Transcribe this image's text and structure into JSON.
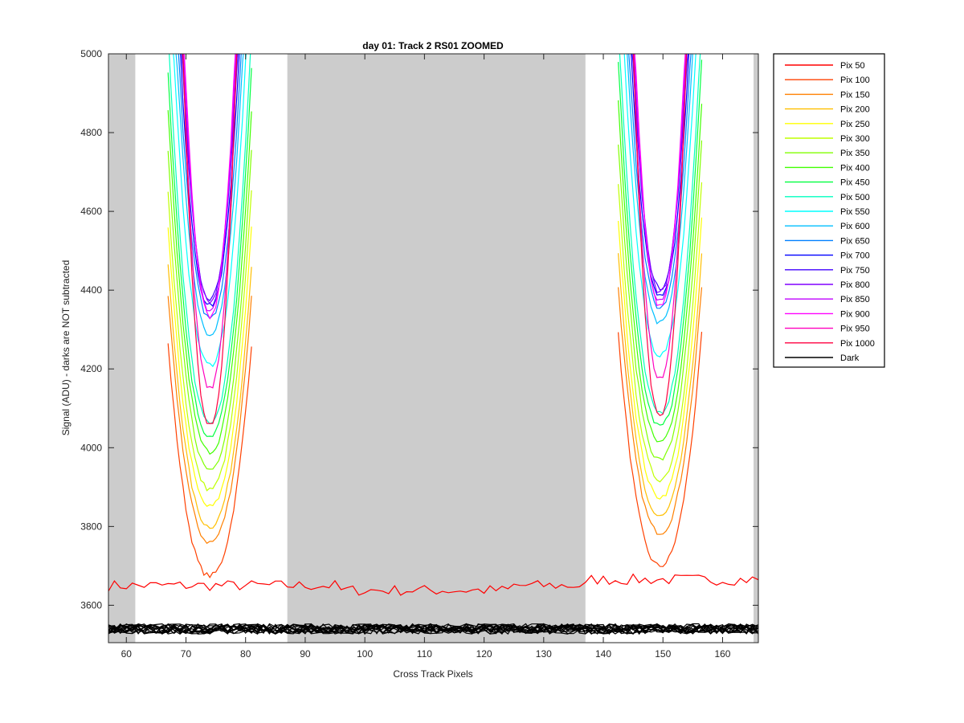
{
  "chart_data": {
    "type": "line",
    "title": "day 01: Track 2  RS01 ZOOMED",
    "xlabel": "Cross Track Pixels",
    "ylabel": "Signal (ADU) - darks are NOT subtracted",
    "xlim": [
      57,
      166
    ],
    "ylim": [
      3505,
      5000
    ],
    "xticks": [
      60,
      70,
      80,
      90,
      100,
      110,
      120,
      130,
      140,
      150,
      160
    ],
    "yticks": [
      3600,
      3800,
      4000,
      4200,
      4400,
      4600,
      4800,
      5000
    ],
    "grid": false,
    "legend_position": "outside-right",
    "shaded_x_ranges": [
      [
        57,
        61.5
      ],
      [
        87,
        137
      ],
      [
        165.2,
        166
      ]
    ],
    "dip_centers": [
      74,
      149.5
    ],
    "series": [
      {
        "name": "Pix 50",
        "color": "#ff0000",
        "baseline": 3650
      },
      {
        "name": "Pix 100",
        "color": "#ff4000",
        "dip_min": 3675
      },
      {
        "name": "Pix 150",
        "color": "#ff8000",
        "dip_min": 3760
      },
      {
        "name": "Pix 200",
        "color": "#ffbf00",
        "dip_min": 3800
      },
      {
        "name": "Pix 250",
        "color": "#ffff00",
        "dip_min": 3850
      },
      {
        "name": "Pix 300",
        "color": "#bfff00",
        "dip_min": 3895
      },
      {
        "name": "Pix 350",
        "color": "#80ff00",
        "dip_min": 3945
      },
      {
        "name": "Pix 400",
        "color": "#40ff00",
        "dip_min": 3990
      },
      {
        "name": "Pix 450",
        "color": "#00ff40",
        "dip_min": 4030
      },
      {
        "name": "Pix 500",
        "color": "#00ffbf",
        "dip_min": 4065
      },
      {
        "name": "Pix 550",
        "color": "#00ffff",
        "dip_min": 4210
      },
      {
        "name": "Pix 600",
        "color": "#00bfff",
        "dip_min": 4290
      },
      {
        "name": "Pix 650",
        "color": "#0080ff",
        "dip_min": 4330
      },
      {
        "name": "Pix 700",
        "color": "#0000ff",
        "dip_min": 4360
      },
      {
        "name": "Pix 750",
        "color": "#4000ff",
        "dip_min": 4380
      },
      {
        "name": "Pix 800",
        "color": "#8000ff",
        "dip_min": 4370
      },
      {
        "name": "Pix 850",
        "color": "#bf00ff",
        "dip_min": 4345
      },
      {
        "name": "Pix 900",
        "color": "#ff00ff",
        "dip_min": 4335
      },
      {
        "name": "Pix 950",
        "color": "#ff00bf",
        "dip_min": 4150
      },
      {
        "name": "Pix 1000",
        "color": "#ff0040",
        "dip_min": 4055
      },
      {
        "name": "Dark",
        "color": "#000000",
        "baseline": 3540
      }
    ]
  }
}
